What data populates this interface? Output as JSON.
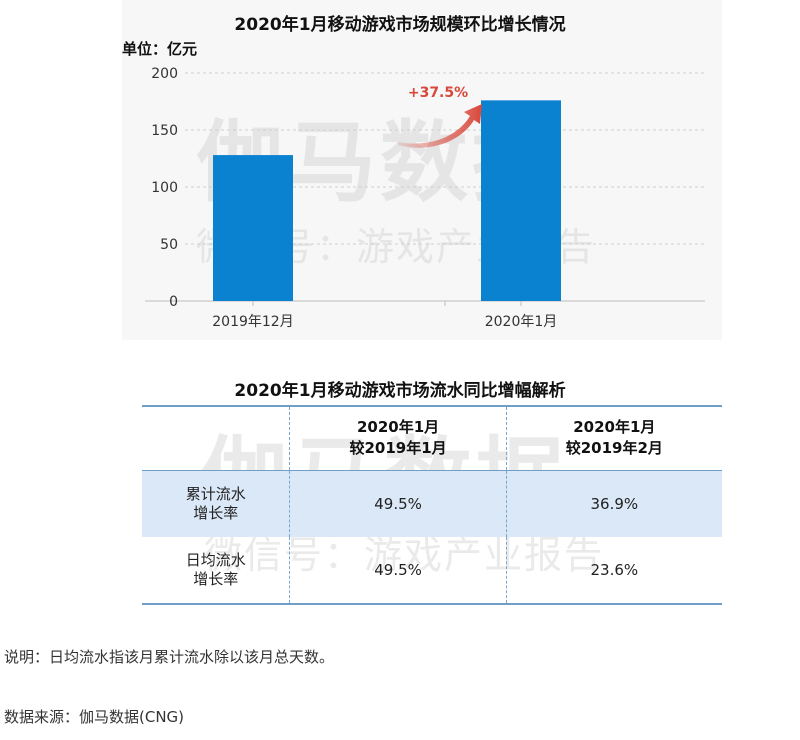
{
  "chart_data": {
    "type": "bar",
    "title": "2020年1月移动游戏市场规模环比增长情况",
    "unit_label": "单位：亿元",
    "categories": [
      "2019年12月",
      "2020年1月"
    ],
    "values": [
      128,
      176
    ],
    "ylim": [
      0,
      200
    ],
    "yticks": [
      0,
      50,
      100,
      150,
      200
    ],
    "grid": true,
    "annotation": "+37.5%",
    "colors": {
      "bar": "#0a82d0",
      "annotation": "#d9483b",
      "grid": "#cfcfcf"
    }
  },
  "table": {
    "title": "2020年1月移动游戏市场流水同比增幅解析",
    "headers": [
      "",
      [
        "2020年1月",
        "较2019年1月"
      ],
      [
        "2020年1月",
        "较2019年2月"
      ]
    ],
    "rows": [
      {
        "label": [
          "累计流水",
          "增长率"
        ],
        "values": [
          "49.5%",
          "36.9%"
        ]
      },
      {
        "label": [
          "日均流水",
          "增长率"
        ],
        "values": [
          "49.5%",
          "23.6%"
        ]
      }
    ]
  },
  "watermark": {
    "brand": "伽马数据",
    "subtitle": "微信号：游戏产业报告"
  },
  "note": "说明：日均流水指该月累计流水除以该月总天数。",
  "source": "数据来源：伽马数据(CNG)"
}
